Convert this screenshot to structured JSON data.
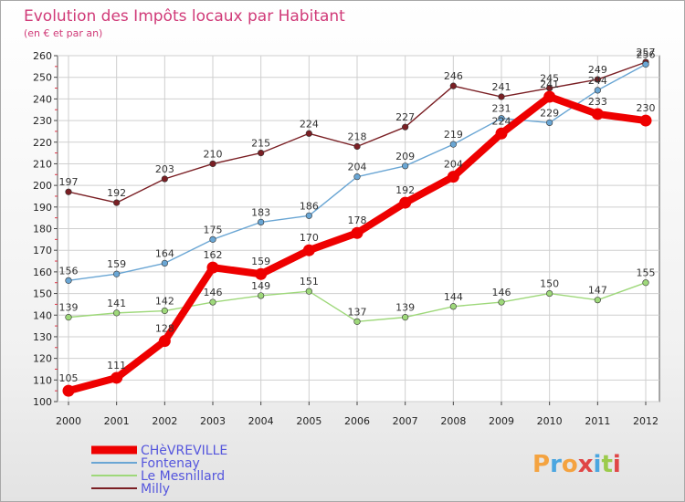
{
  "chart_data": {
    "type": "line",
    "title": "Evolution des Impôts locaux par Habitant",
    "subtitle": "(en € et par an)",
    "xlabel": "",
    "ylabel": "",
    "categories": [
      "2000",
      "2001",
      "2002",
      "2003",
      "2004",
      "2005",
      "2006",
      "2007",
      "2008",
      "2009",
      "2010",
      "2011",
      "2012"
    ],
    "ylim": [
      100,
      260
    ],
    "yticks": [
      100,
      110,
      120,
      130,
      140,
      150,
      160,
      170,
      180,
      190,
      200,
      210,
      220,
      230,
      240,
      250,
      260
    ],
    "grid": true,
    "legend_position": "bottom-left",
    "series": [
      {
        "name": "Milly",
        "color": "#7a1f24",
        "values": [
          197,
          192,
          203,
          210,
          215,
          224,
          218,
          227,
          246,
          241,
          245,
          249,
          257
        ]
      },
      {
        "name": "Fontenay",
        "color": "#6aa6d4",
        "values": [
          156,
          159,
          164,
          175,
          183,
          186,
          204,
          209,
          219,
          231,
          229,
          244,
          256
        ]
      },
      {
        "name": "Le Mesnillard",
        "color": "#9ed87a",
        "values": [
          139,
          141,
          142,
          146,
          149,
          151,
          137,
          139,
          144,
          146,
          150,
          147,
          155
        ]
      },
      {
        "name": "CHèVREVILLE",
        "color": "#ee0000",
        "values": [
          105,
          111,
          128,
          162,
          159,
          170,
          178,
          192,
          204,
          224,
          241,
          233,
          230
        ]
      }
    ],
    "legend_order": [
      "CHèVREVILLE",
      "Fontenay",
      "Le Mesnillard",
      "Milly"
    ]
  },
  "logo": {
    "letters": [
      "P",
      "r",
      "o",
      "x",
      "i",
      "t",
      "i"
    ],
    "colors": [
      "#f4a340",
      "#4ba6e0",
      "#f4a340",
      "#e04646",
      "#4ba6e0",
      "#9ccb4c",
      "#e04646"
    ]
  }
}
